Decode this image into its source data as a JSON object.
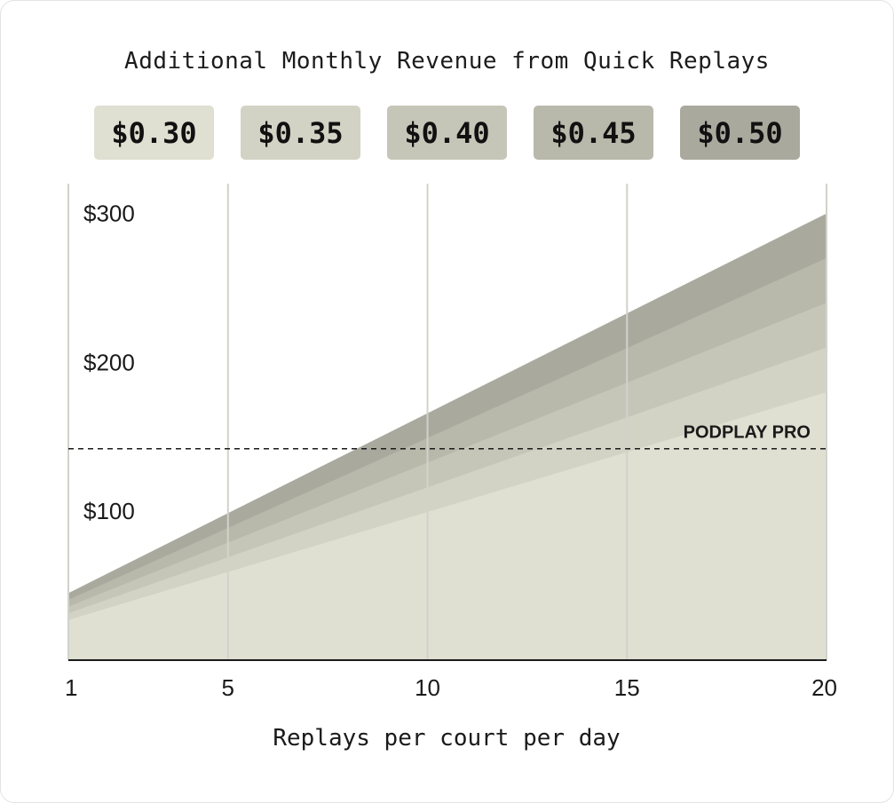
{
  "chart_data": {
    "type": "area",
    "title": "Additional Monthly Revenue from Quick Replays",
    "xlabel": "Replays per court per day",
    "ylabel": "",
    "x": [
      1,
      20
    ],
    "x_ticks": [
      1,
      5,
      10,
      15,
      20
    ],
    "y_ticks": [
      100,
      200,
      300
    ],
    "y_tick_labels": [
      "$100",
      "$200",
      "$300"
    ],
    "xlim": [
      1,
      20
    ],
    "ylim": [
      0,
      320
    ],
    "grid": "vertical",
    "series": [
      {
        "name": "$0.50",
        "color": "#a9a99e",
        "values": [
          45,
          300
        ]
      },
      {
        "name": "$0.45",
        "color": "#b8b8ab",
        "values": [
          40.5,
          270
        ]
      },
      {
        "name": "$0.40",
        "color": "#c6c6b8",
        "values": [
          36,
          240
        ]
      },
      {
        "name": "$0.35",
        "color": "#d3d3c5",
        "values": [
          31.5,
          210
        ]
      },
      {
        "name": "$0.30",
        "color": "#dfdfd2",
        "values": [
          27,
          180
        ]
      }
    ],
    "legend_order": [
      "$0.30",
      "$0.35",
      "$0.40",
      "$0.45",
      "$0.50"
    ],
    "reference_line": {
      "label": "PODPLAY PRO",
      "value": 142
    }
  }
}
